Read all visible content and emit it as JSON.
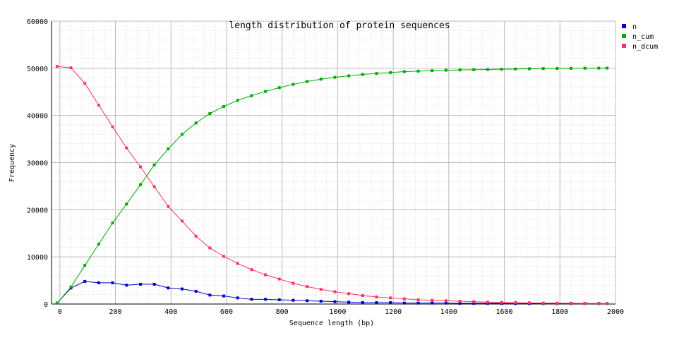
{
  "chart_data": {
    "type": "line",
    "title": "length distribution of protein sequences",
    "xlabel": "Sequence length (bp)",
    "ylabel": "Frequency",
    "xlim": [
      -30,
      2000
    ],
    "ylim": [
      0,
      60000
    ],
    "x_ticks": [
      0,
      200,
      400,
      600,
      800,
      1000,
      1200,
      1400,
      1600,
      1800,
      2000
    ],
    "y_ticks": [
      0,
      10000,
      20000,
      30000,
      40000,
      50000,
      60000
    ],
    "grid": true,
    "legend_position": "top-right",
    "x": [
      -10,
      40,
      90,
      140,
      190,
      240,
      290,
      340,
      390,
      440,
      490,
      540,
      590,
      640,
      690,
      740,
      790,
      840,
      890,
      940,
      990,
      1040,
      1090,
      1140,
      1190,
      1240,
      1290,
      1340,
      1390,
      1440,
      1490,
      1540,
      1590,
      1640,
      1690,
      1740,
      1790,
      1840,
      1890,
      1940,
      1970
    ],
    "series": [
      {
        "name": "n",
        "color": "#0000cc",
        "values": [
          200,
          3400,
          4800,
          4500,
          4500,
          4000,
          4200,
          4200,
          3400,
          3200,
          2700,
          1900,
          1700,
          1300,
          1000,
          1000,
          900,
          800,
          700,
          600,
          500,
          400,
          300,
          300,
          300,
          200,
          200,
          200,
          200,
          150,
          150,
          150,
          150,
          100,
          100,
          100,
          100,
          100,
          100,
          100,
          100
        ]
      },
      {
        "name": "n_cum",
        "color": "#00aa00",
        "values": [
          200,
          3600,
          8200,
          12700,
          17200,
          21200,
          25300,
          29500,
          32900,
          36000,
          38400,
          40400,
          41900,
          43200,
          44200,
          45100,
          45900,
          46600,
          47200,
          47700,
          48100,
          48400,
          48700,
          48900,
          49100,
          49300,
          49400,
          49500,
          49600,
          49650,
          49700,
          49750,
          49800,
          49850,
          49900,
          49950,
          49980,
          50000,
          50020,
          50040,
          50050
        ]
      },
      {
        "name": "n_dcum",
        "color": "#ff3366",
        "values": [
          50400,
          50100,
          46800,
          42200,
          37600,
          33100,
          29100,
          24900,
          20700,
          17600,
          14400,
          11900,
          10100,
          8600,
          7300,
          6200,
          5300,
          4400,
          3700,
          3100,
          2600,
          2200,
          1800,
          1500,
          1300,
          1100,
          900,
          800,
          700,
          600,
          500,
          400,
          350,
          300,
          250,
          200,
          180,
          160,
          140,
          120,
          100
        ]
      }
    ]
  }
}
